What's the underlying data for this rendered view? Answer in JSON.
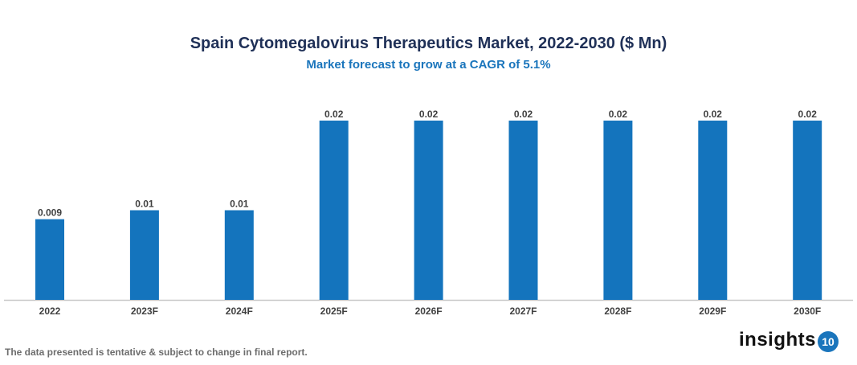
{
  "chart_data": {
    "type": "bar",
    "title": "Spain Cytomegalovirus Therapeutics Market, 2022-2030 ($ Mn)",
    "subtitle": "Market forecast to grow at a CAGR of 5.1%",
    "categories": [
      "2022",
      "2023F",
      "2024F",
      "2025F",
      "2026F",
      "2027F",
      "2028F",
      "2029F",
      "2030F"
    ],
    "values": [
      0.009,
      0.01,
      0.01,
      0.02,
      0.02,
      0.02,
      0.02,
      0.02,
      0.02
    ],
    "data_labels": [
      "0.009",
      "0.01",
      "0.01",
      "0.02",
      "0.02",
      "0.02",
      "0.02",
      "0.02",
      "0.02"
    ],
    "xlabel": "",
    "ylabel": "",
    "ylim": [
      0,
      0.02
    ],
    "grid": false,
    "bar_color": "#1474bd"
  },
  "footer": {
    "note": "The data presented is tentative & subject to change in final report."
  },
  "logo": {
    "text": "insights",
    "badge": "10"
  }
}
